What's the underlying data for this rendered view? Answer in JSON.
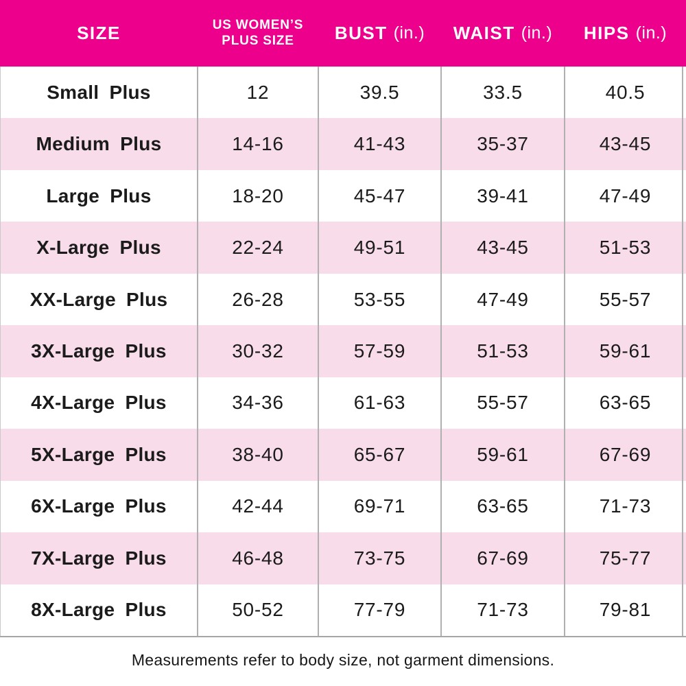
{
  "colors": {
    "header_bg": "#EC008C",
    "header_text": "#FFFFFF",
    "row_alt_bg": "#F8DCE9",
    "row_bg": "#FFFFFF",
    "grid_line": "#B0B0B0",
    "body_text": "#1B1B1B"
  },
  "header": {
    "size": "SIZE",
    "us_line1": "US WOMEN’S",
    "us_line2": "PLUS SIZE",
    "bust": "BUST",
    "waist": "WAIST",
    "hips": "HIPS",
    "unit": "(in.)"
  },
  "footnote": "Measurements refer to body size, not garment dimensions.",
  "chart_data": {
    "type": "table",
    "title": "Women's plus size chart",
    "columns": [
      "SIZE",
      "US WOMEN’S PLUS SIZE",
      "BUST (in.)",
      "WAIST (in.)",
      "HIPS (in.)"
    ],
    "rows": [
      [
        "Small Plus",
        "12",
        "39.5",
        "33.5",
        "40.5"
      ],
      [
        "Medium Plus",
        "14-16",
        "41-43",
        "35-37",
        "43-45"
      ],
      [
        "Large Plus",
        "18-20",
        "45-47",
        "39-41",
        "47-49"
      ],
      [
        "X-Large Plus",
        "22-24",
        "49-51",
        "43-45",
        "51-53"
      ],
      [
        "XX-Large Plus",
        "26-28",
        "53-55",
        "47-49",
        "55-57"
      ],
      [
        "3X-Large Plus",
        "30-32",
        "57-59",
        "51-53",
        "59-61"
      ],
      [
        "4X-Large Plus",
        "34-36",
        "61-63",
        "55-57",
        "63-65"
      ],
      [
        "5X-Large Plus",
        "38-40",
        "65-67",
        "59-61",
        "67-69"
      ],
      [
        "6X-Large Plus",
        "42-44",
        "69-71",
        "63-65",
        "71-73"
      ],
      [
        "7X-Large Plus",
        "46-48",
        "73-75",
        "67-69",
        "75-77"
      ],
      [
        "8X-Large Plus",
        "50-52",
        "77-79",
        "71-73",
        "79-81"
      ]
    ],
    "layout": {
      "striped": true,
      "stripe_colors": [
        "#FFFFFF",
        "#F8DCE9"
      ],
      "column_separators": true,
      "header_bg": "#EC008C"
    }
  }
}
